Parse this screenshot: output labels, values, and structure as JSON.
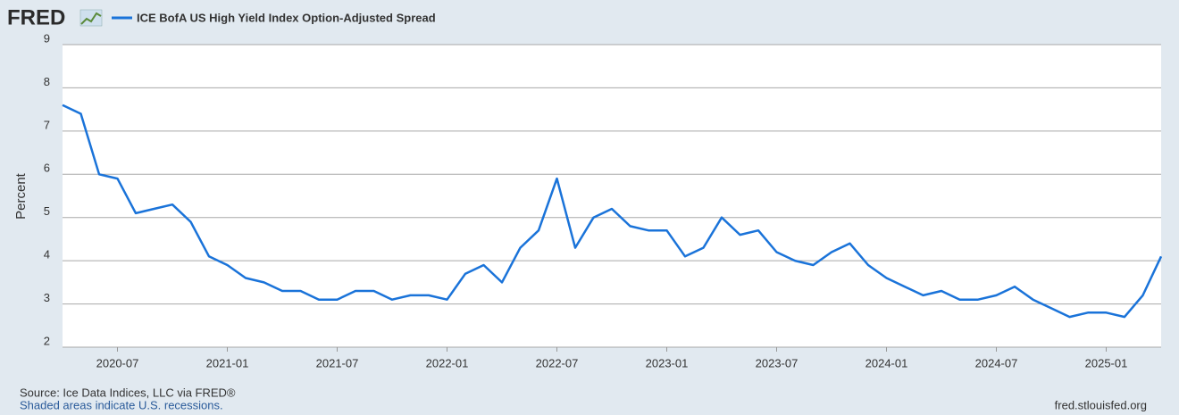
{
  "logo": "FRED",
  "chart_data": {
    "type": "line",
    "series": [
      {
        "name": "ICE BofA US High Yield Index Option-Adjusted Spread",
        "color": "#1a73d9",
        "values": [
          7.6,
          7.4,
          6.0,
          5.9,
          5.1,
          5.2,
          5.3,
          4.9,
          4.1,
          3.9,
          3.6,
          3.5,
          3.3,
          3.3,
          3.1,
          3.1,
          3.3,
          3.3,
          3.1,
          3.2,
          3.2,
          3.1,
          3.7,
          3.9,
          3.5,
          4.3,
          4.7,
          5.9,
          4.3,
          5.0,
          5.2,
          4.8,
          4.7,
          4.7,
          4.1,
          4.3,
          5.0,
          4.6,
          4.7,
          4.2,
          4.0,
          3.9,
          4.2,
          4.4,
          3.9,
          3.6,
          3.4,
          3.2,
          3.3,
          3.1,
          3.1,
          3.2,
          3.4,
          3.1,
          2.9,
          2.7,
          2.8,
          2.8,
          2.7,
          3.2,
          4.1
        ]
      }
    ],
    "x": [
      "2020-04",
      "2020-05",
      "2020-06",
      "2020-07",
      "2020-08",
      "2020-09",
      "2020-10",
      "2020-11",
      "2020-12",
      "2021-01",
      "2021-02",
      "2021-03",
      "2021-04",
      "2021-05",
      "2021-06",
      "2021-07",
      "2021-08",
      "2021-09",
      "2021-10",
      "2021-11",
      "2021-12",
      "2022-01",
      "2022-02",
      "2022-03",
      "2022-04",
      "2022-05",
      "2022-06",
      "2022-07",
      "2022-08",
      "2022-09",
      "2022-10",
      "2022-11",
      "2022-12",
      "2023-01",
      "2023-02",
      "2023-03",
      "2023-04",
      "2023-05",
      "2023-06",
      "2023-07",
      "2023-08",
      "2023-09",
      "2023-10",
      "2023-11",
      "2023-12",
      "2024-01",
      "2024-02",
      "2024-03",
      "2024-04",
      "2024-05",
      "2024-06",
      "2024-07",
      "2024-08",
      "2024-09",
      "2024-10",
      "2024-11",
      "2024-12",
      "2025-01",
      "2025-02",
      "2025-03",
      "2025-04"
    ],
    "xlim": [
      "2020-04",
      "2025-04"
    ],
    "xticks": [
      "2020-07",
      "2021-01",
      "2021-07",
      "2022-01",
      "2022-07",
      "2023-01",
      "2023-07",
      "2024-01",
      "2024-07",
      "2025-01"
    ],
    "ylabel": "Percent",
    "ylim": [
      2,
      9
    ],
    "yticks": [
      2,
      3,
      4,
      5,
      6,
      7,
      8,
      9
    ],
    "grid": true
  },
  "footer": {
    "source": "Source: Ice Data Indices, LLC via FRED®",
    "note": "Shaded areas indicate U.S. recessions.",
    "site": "fred.stlouisfed.org"
  }
}
